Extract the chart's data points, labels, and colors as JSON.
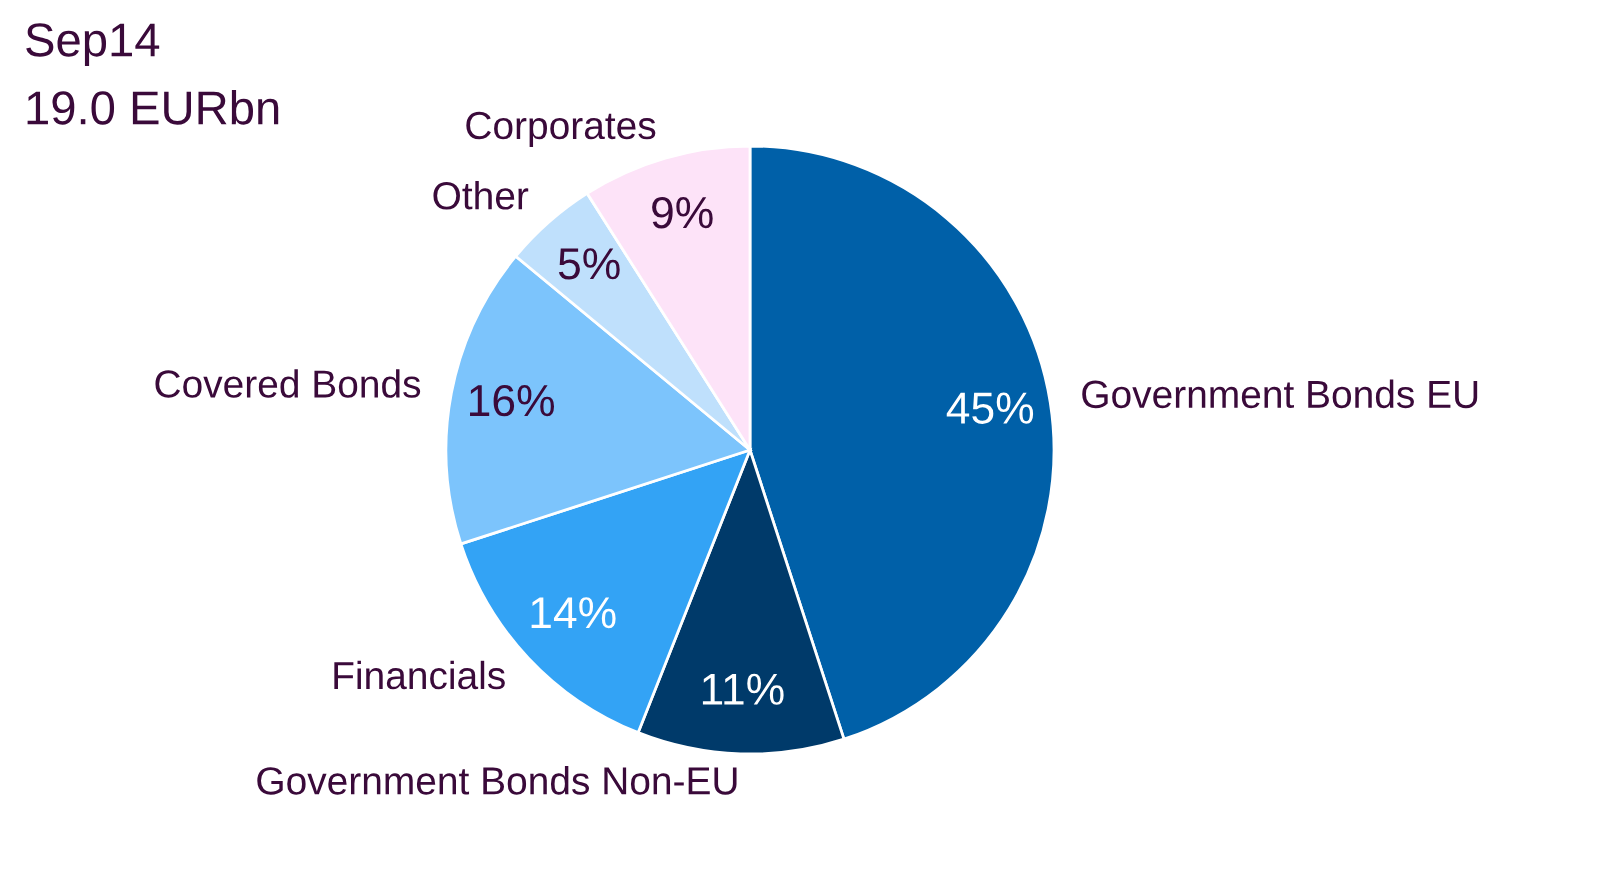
{
  "chart_data": {
    "type": "pie",
    "title": "Sep14",
    "subtitle": "19.0 EURbn",
    "categories": [
      "Government Bonds EU",
      "Government Bonds Non-EU",
      "Financials",
      "Covered Bonds",
      "Other",
      "Corporates"
    ],
    "values": [
      45,
      11,
      14,
      16,
      5,
      9
    ],
    "colors": [
      "#0060a8",
      "#003a6a",
      "#33a3f5",
      "#7cc4fc",
      "#bfe0fc",
      "#fde3f8"
    ],
    "value_labels": [
      "45%",
      "11%",
      "14%",
      "16%",
      "5%",
      "9%"
    ],
    "legend": false
  }
}
